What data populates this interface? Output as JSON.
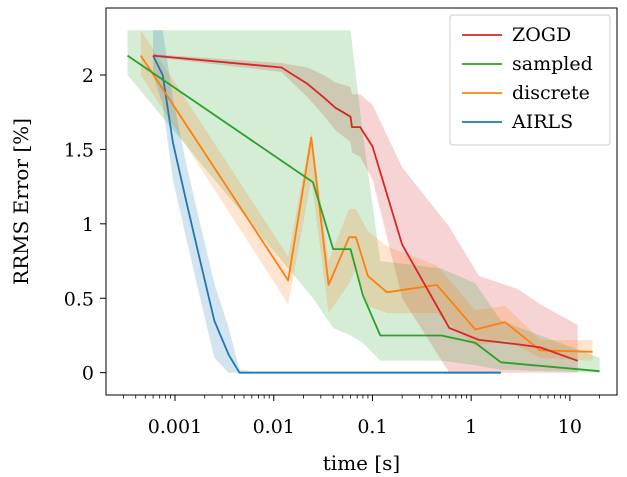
{
  "chart_data": {
    "type": "line",
    "title": "",
    "xlabel": "time [s]",
    "ylabel": "RRMS Error [%]",
    "xscale": "log",
    "xlim": [
      0.0002,
      30
    ],
    "ylim": [
      -0.15,
      2.45
    ],
    "x_ticks": [
      0.001,
      0.01,
      0.1,
      1,
      10
    ],
    "x_tick_labels": [
      "0.001",
      "0.01",
      "0.1",
      "1",
      "10"
    ],
    "y_ticks": [
      0,
      0.5,
      1,
      1.5,
      2
    ],
    "y_tick_labels": [
      "0",
      "0.5",
      "1",
      "1.5",
      "2"
    ],
    "grid": false,
    "legend_position": "top-right",
    "series": [
      {
        "name": "ZOGD",
        "color": "#d62728",
        "x": [
          0.0006,
          0.012,
          0.022,
          0.032,
          0.042,
          0.06,
          0.062,
          0.075,
          0.1,
          0.2,
          0.6,
          1.2,
          3.0,
          5.0,
          12.0
        ],
        "y": [
          2.13,
          2.05,
          1.94,
          1.85,
          1.78,
          1.72,
          1.65,
          1.65,
          1.52,
          0.86,
          0.3,
          0.22,
          0.19,
          0.17,
          0.08
        ],
        "upper": [
          2.14,
          2.08,
          2.05,
          2.0,
          1.95,
          1.92,
          1.87,
          1.87,
          1.8,
          1.38,
          0.98,
          0.65,
          0.56,
          0.46,
          0.32
        ],
        "lower": [
          2.12,
          2.02,
          1.85,
          1.73,
          1.63,
          1.55,
          1.48,
          1.45,
          1.3,
          0.5,
          0.0,
          0.0,
          0.0,
          0.0,
          0.0
        ]
      },
      {
        "name": "sampled",
        "color": "#2ca02c",
        "x": [
          0.00033,
          0.025,
          0.04,
          0.06,
          0.08,
          0.12,
          0.5,
          1.1,
          2.0,
          20.0
        ],
        "y": [
          2.13,
          1.28,
          0.83,
          0.83,
          0.52,
          0.25,
          0.25,
          0.2,
          0.07,
          0.01
        ],
        "upper": [
          2.3,
          2.3,
          2.3,
          2.3,
          1.6,
          0.75,
          0.7,
          0.6,
          0.35,
          0.1
        ],
        "lower": [
          2.0,
          0.5,
          0.3,
          0.25,
          0.2,
          0.08,
          0.08,
          0.05,
          0.02,
          0.0
        ]
      },
      {
        "name": "discrete",
        "color": "#ff7f0e",
        "x": [
          0.00045,
          0.014,
          0.024,
          0.036,
          0.058,
          0.068,
          0.09,
          0.14,
          0.45,
          1.1,
          2.2,
          5.0,
          17.0
        ],
        "y": [
          2.13,
          0.62,
          1.58,
          0.59,
          0.91,
          0.91,
          0.65,
          0.54,
          0.59,
          0.29,
          0.34,
          0.15,
          0.14
        ],
        "upper": [
          2.3,
          0.78,
          1.62,
          0.75,
          1.1,
          1.1,
          0.95,
          0.85,
          0.72,
          0.42,
          0.45,
          0.22,
          0.22
        ],
        "lower": [
          2.0,
          0.46,
          1.3,
          0.4,
          0.6,
          0.7,
          0.45,
          0.4,
          0.4,
          0.18,
          0.22,
          0.1,
          0.08
        ]
      },
      {
        "name": "AIRLS",
        "color": "#1f77b4",
        "x": [
          0.0006,
          0.00075,
          0.00095,
          0.0013,
          0.0018,
          0.0025,
          0.0035,
          0.0045,
          0.006,
          0.01,
          0.1,
          1.0,
          2.0
        ],
        "y": [
          2.13,
          2.0,
          1.55,
          1.15,
          0.75,
          0.35,
          0.12,
          0.0,
          0.0,
          0.0,
          0.0,
          0.0,
          0.0
        ],
        "upper": [
          2.3,
          2.3,
          1.85,
          1.4,
          1.0,
          0.6,
          0.3,
          0.02,
          0.01,
          0.01,
          0.01,
          0.01,
          0.01
        ],
        "lower": [
          2.0,
          1.8,
          1.3,
          0.9,
          0.5,
          0.1,
          0.0,
          0.0,
          0.0,
          0.0,
          0.0,
          0.0,
          0.0
        ]
      }
    ]
  }
}
